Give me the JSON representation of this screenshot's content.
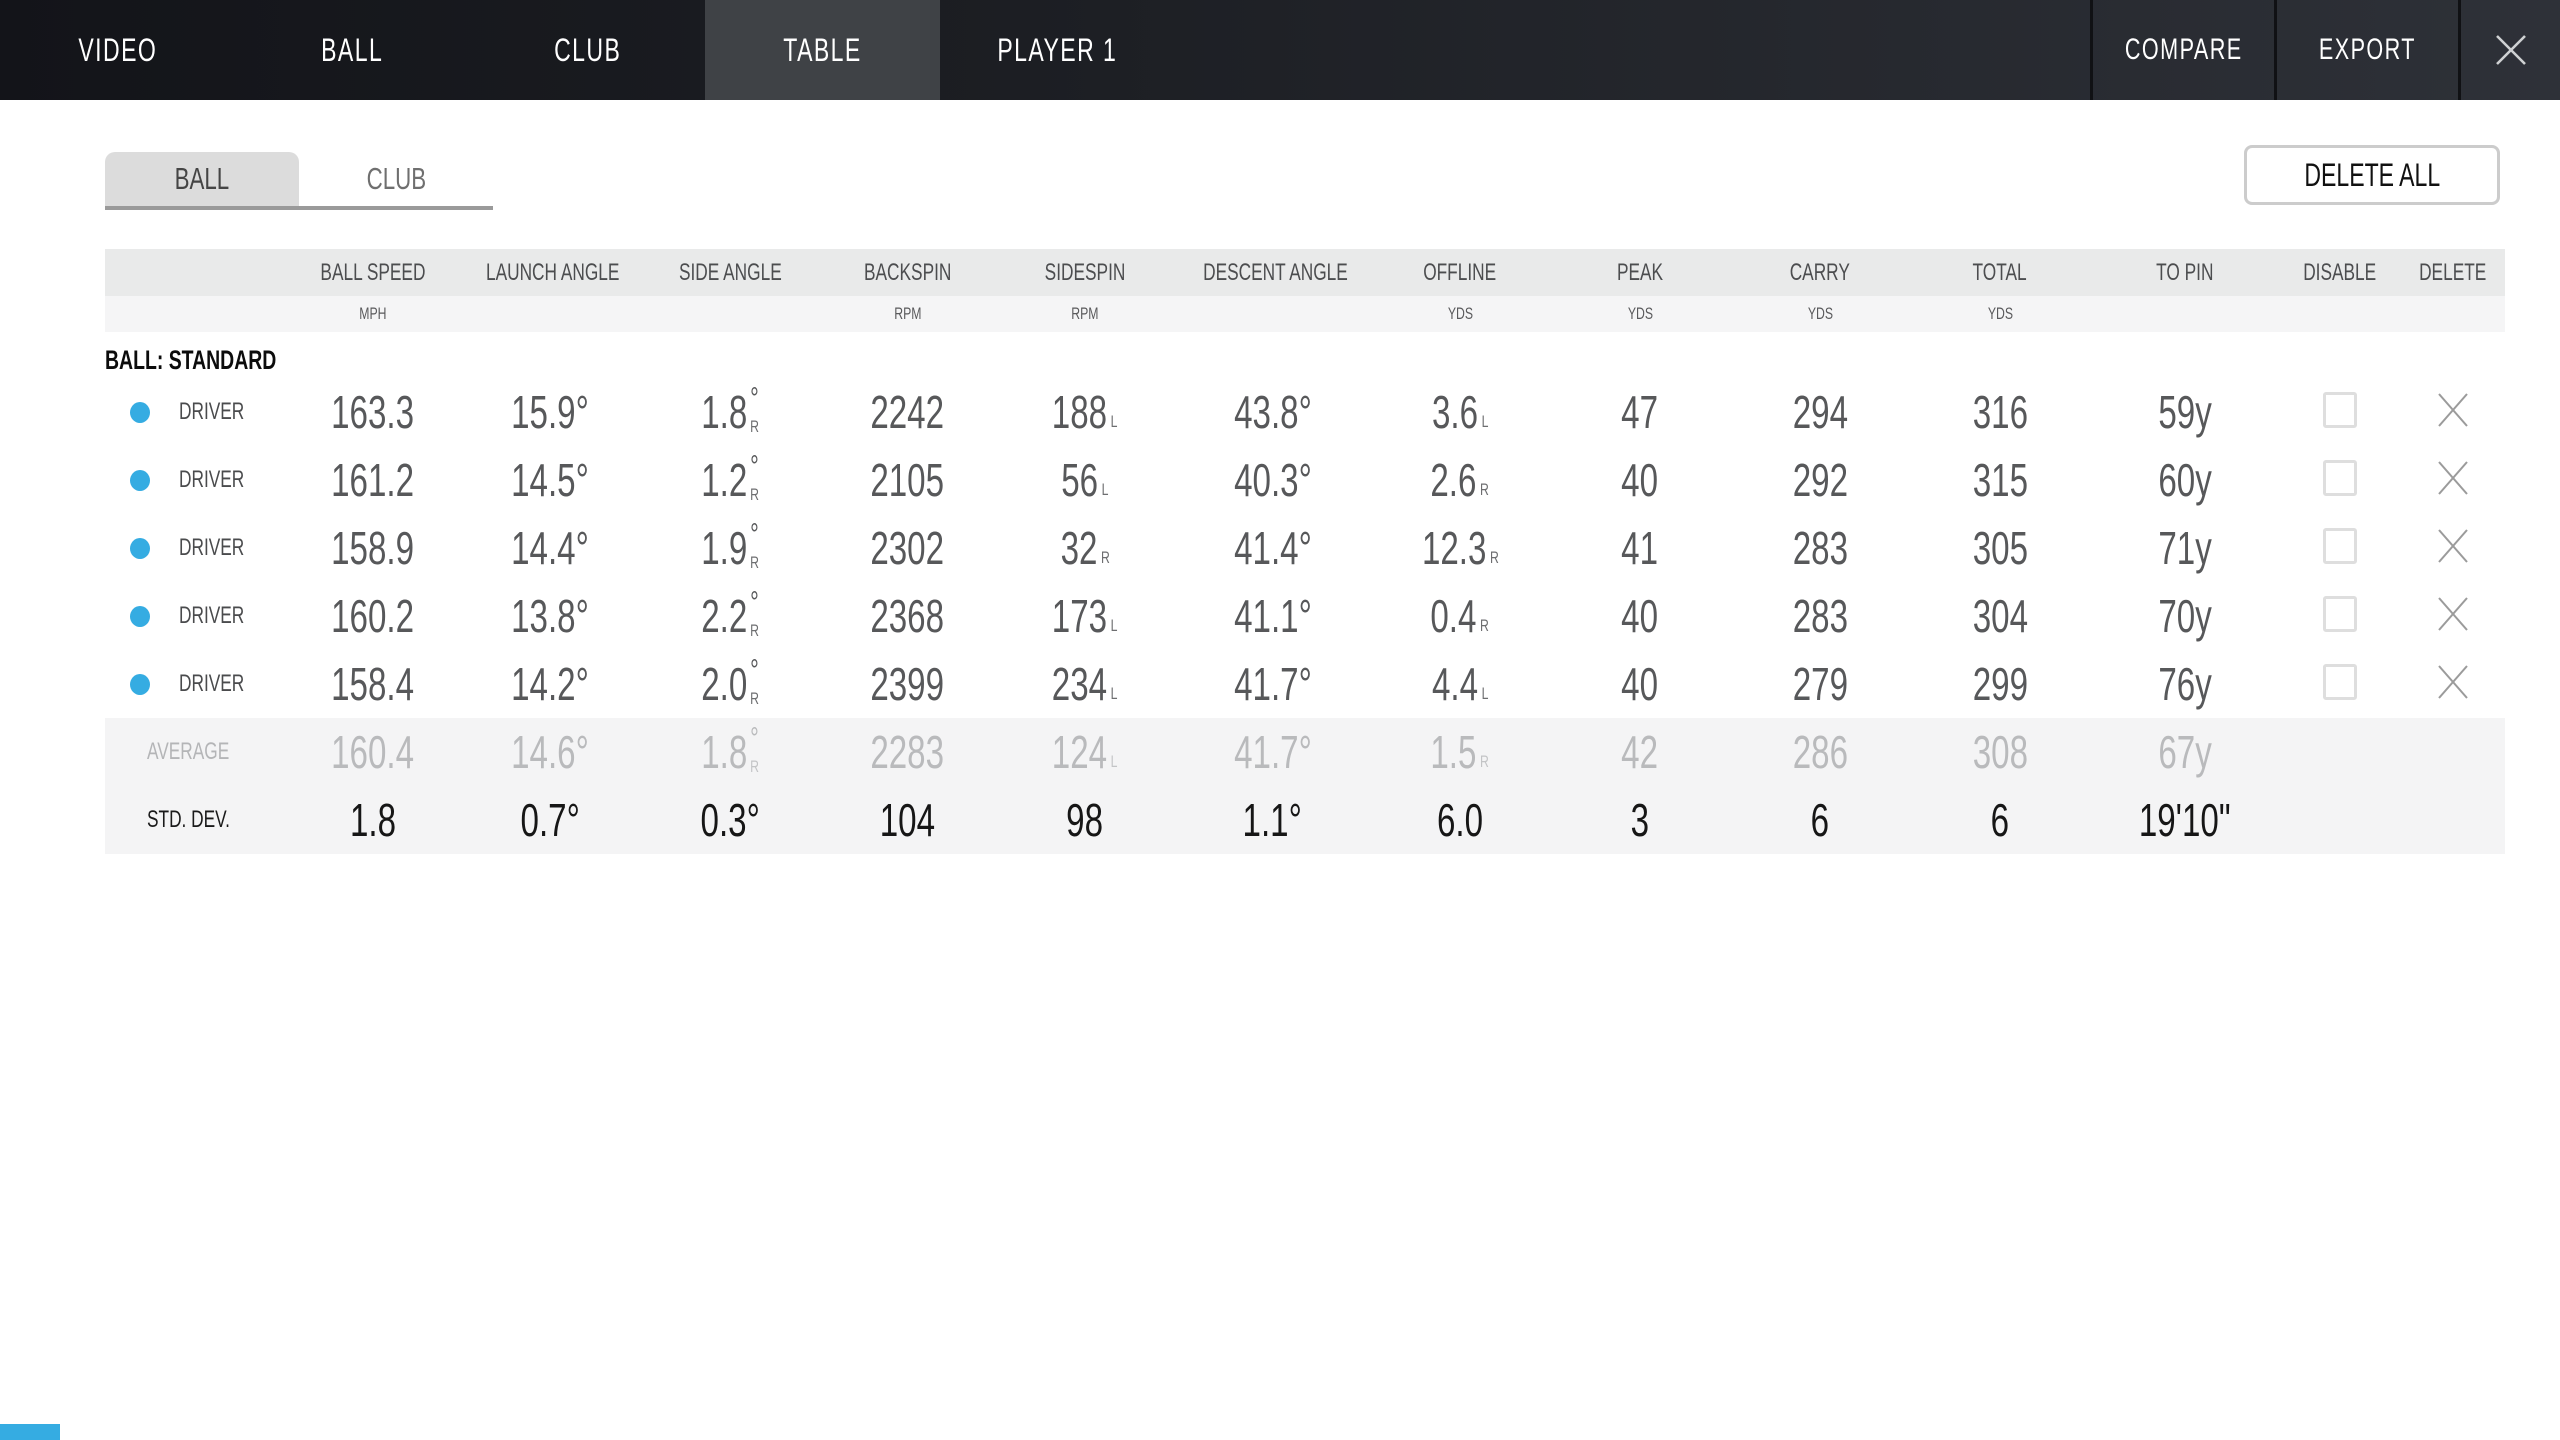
{
  "colors": {
    "accent_blue": "#35ace2",
    "nav_bg_left": "#131419",
    "nav_bg_right": "#2e3138",
    "nav_active_tab": "#3f4246",
    "header_bg": "#e9eaea",
    "footer_row_bg": "#f4f4f5"
  },
  "nav": {
    "tabs": [
      {
        "label": "VIDEO",
        "active": false
      },
      {
        "label": "BALL",
        "active": false
      },
      {
        "label": "CLUB",
        "active": false
      },
      {
        "label": "TABLE",
        "active": true
      },
      {
        "label": "PLAYER 1",
        "active": false
      }
    ],
    "actions": [
      {
        "label": "COMPARE"
      },
      {
        "label": "EXPORT"
      }
    ],
    "close_icon": "close-x"
  },
  "subtabs": [
    {
      "label": "BALL",
      "active": true
    },
    {
      "label": "CLUB",
      "active": false
    }
  ],
  "delete_all_label": "DELETE ALL",
  "table": {
    "group_label": "BALL: STANDARD",
    "columns": [
      {
        "key": "ball_speed",
        "label": "BALL SPEED",
        "unit": "MPH"
      },
      {
        "key": "launch_angle",
        "label": "LAUNCH ANGLE",
        "unit": ""
      },
      {
        "key": "side_angle",
        "label": "SIDE ANGLE",
        "unit": ""
      },
      {
        "key": "backspin",
        "label": "BACKSPIN",
        "unit": "RPM"
      },
      {
        "key": "sidespin",
        "label": "SIDESPIN",
        "unit": "RPM"
      },
      {
        "key": "descent_angle",
        "label": "DESCENT ANGLE",
        "unit": ""
      },
      {
        "key": "offline",
        "label": "OFFLINE",
        "unit": "YDS"
      },
      {
        "key": "peak",
        "label": "PEAK",
        "unit": "YDS"
      },
      {
        "key": "carry",
        "label": "CARRY",
        "unit": "YDS"
      },
      {
        "key": "total",
        "label": "TOTAL",
        "unit": "YDS"
      },
      {
        "key": "to_pin",
        "label": "TO PIN",
        "unit": ""
      },
      {
        "key": "disable",
        "label": "DISABLE",
        "unit": ""
      },
      {
        "key": "delete",
        "label": "DELETE",
        "unit": ""
      }
    ],
    "rows": [
      {
        "club": "DRIVER",
        "disabled": false,
        "values": [
          {
            "v": "163.3"
          },
          {
            "v": "15.9°"
          },
          {
            "v": "1.8",
            "stack_deg": true,
            "dir": "R"
          },
          {
            "v": "2242"
          },
          {
            "v": "188",
            "dir": "L"
          },
          {
            "v": "43.8°"
          },
          {
            "v": "3.6",
            "dir": "L"
          },
          {
            "v": "47"
          },
          {
            "v": "294"
          },
          {
            "v": "316"
          },
          {
            "v": "59y"
          }
        ]
      },
      {
        "club": "DRIVER",
        "disabled": false,
        "values": [
          {
            "v": "161.2"
          },
          {
            "v": "14.5°"
          },
          {
            "v": "1.2",
            "stack_deg": true,
            "dir": "R"
          },
          {
            "v": "2105"
          },
          {
            "v": "56",
            "dir": "L"
          },
          {
            "v": "40.3°"
          },
          {
            "v": "2.6",
            "dir": "R"
          },
          {
            "v": "40"
          },
          {
            "v": "292"
          },
          {
            "v": "315"
          },
          {
            "v": "60y"
          }
        ]
      },
      {
        "club": "DRIVER",
        "disabled": false,
        "values": [
          {
            "v": "158.9"
          },
          {
            "v": "14.4°"
          },
          {
            "v": "1.9",
            "stack_deg": true,
            "dir": "R"
          },
          {
            "v": "2302"
          },
          {
            "v": "32",
            "dir": "R"
          },
          {
            "v": "41.4°"
          },
          {
            "v": "12.3",
            "dir": "R"
          },
          {
            "v": "41"
          },
          {
            "v": "283"
          },
          {
            "v": "305"
          },
          {
            "v": "71y"
          }
        ]
      },
      {
        "club": "DRIVER",
        "disabled": false,
        "values": [
          {
            "v": "160.2"
          },
          {
            "v": "13.8°"
          },
          {
            "v": "2.2",
            "stack_deg": true,
            "dir": "R"
          },
          {
            "v": "2368"
          },
          {
            "v": "173",
            "dir": "L"
          },
          {
            "v": "41.1°"
          },
          {
            "v": "0.4",
            "dir": "R"
          },
          {
            "v": "40"
          },
          {
            "v": "283"
          },
          {
            "v": "304"
          },
          {
            "v": "70y"
          }
        ]
      },
      {
        "club": "DRIVER",
        "disabled": false,
        "values": [
          {
            "v": "158.4"
          },
          {
            "v": "14.2°"
          },
          {
            "v": "2.0",
            "stack_deg": true,
            "dir": "R"
          },
          {
            "v": "2399"
          },
          {
            "v": "234",
            "dir": "L"
          },
          {
            "v": "41.7°"
          },
          {
            "v": "4.4",
            "dir": "L"
          },
          {
            "v": "40"
          },
          {
            "v": "279"
          },
          {
            "v": "299"
          },
          {
            "v": "76y"
          }
        ]
      }
    ],
    "average": {
      "label": "AVERAGE",
      "values": [
        {
          "v": "160.4"
        },
        {
          "v": "14.6°"
        },
        {
          "v": "1.8",
          "stack_deg": true,
          "dir": "R"
        },
        {
          "v": "2283"
        },
        {
          "v": "124",
          "dir": "L"
        },
        {
          "v": "41.7°"
        },
        {
          "v": "1.5",
          "dir": "R"
        },
        {
          "v": "42"
        },
        {
          "v": "286"
        },
        {
          "v": "308"
        },
        {
          "v": "67y"
        }
      ]
    },
    "stddev": {
      "label": "STD. DEV.",
      "values": [
        {
          "v": "1.8"
        },
        {
          "v": "0.7°"
        },
        {
          "v": "0.3°"
        },
        {
          "v": "104"
        },
        {
          "v": "98"
        },
        {
          "v": "1.1°"
        },
        {
          "v": "6.0"
        },
        {
          "v": "3"
        },
        {
          "v": "6"
        },
        {
          "v": "6"
        },
        {
          "v": "19'10\""
        }
      ]
    }
  }
}
